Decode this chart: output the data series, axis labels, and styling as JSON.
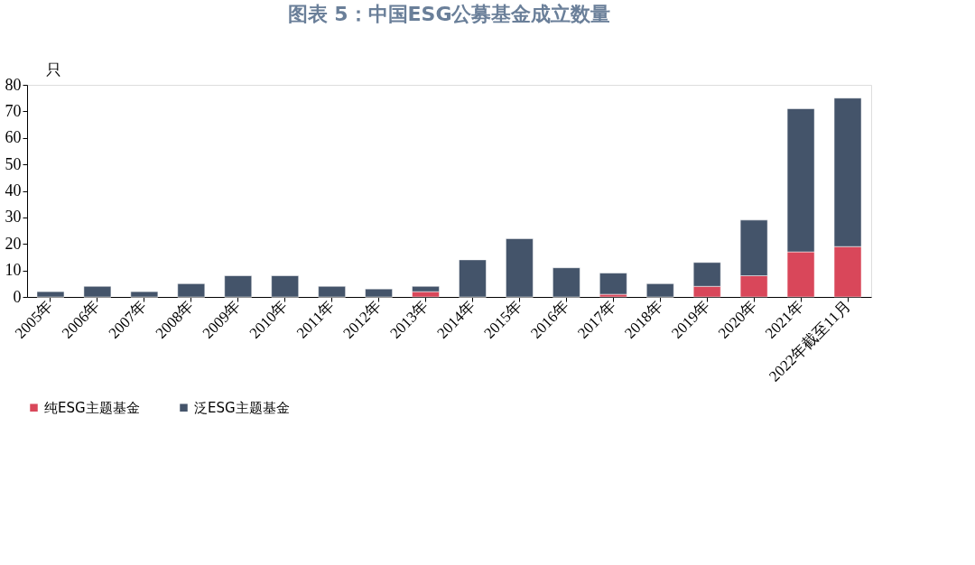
{
  "chart_data": {
    "type": "bar",
    "title": "图表 5：中国ESG公募基金成立数量",
    "ylabel": "只",
    "stacked": true,
    "categories": [
      "2005年",
      "2006年",
      "2007年",
      "2008年",
      "2009年",
      "2010年",
      "2011年",
      "2012年",
      "2013年",
      "2014年",
      "2015年",
      "2016年",
      "2017年",
      "2018年",
      "2019年",
      "2020年",
      "2021年",
      "2022年截至11月"
    ],
    "series": [
      {
        "name": "纯ESG主题基金",
        "color": "#d9475a",
        "values": [
          0,
          0,
          0,
          0,
          0,
          0,
          0,
          0,
          2,
          0,
          0,
          0,
          1,
          0,
          4,
          8,
          17,
          19
        ]
      },
      {
        "name": "泛ESG主题基金",
        "color": "#44546a",
        "values": [
          2,
          4,
          2,
          5,
          8,
          8,
          4,
          3,
          2,
          14,
          22,
          11,
          8,
          5,
          9,
          21,
          54,
          56
        ]
      }
    ],
    "ylim": [
      0,
      80
    ],
    "yticks": [
      0,
      10,
      20,
      30,
      40,
      50,
      60,
      70,
      80
    ],
    "grid": false,
    "legend": "bottom"
  }
}
